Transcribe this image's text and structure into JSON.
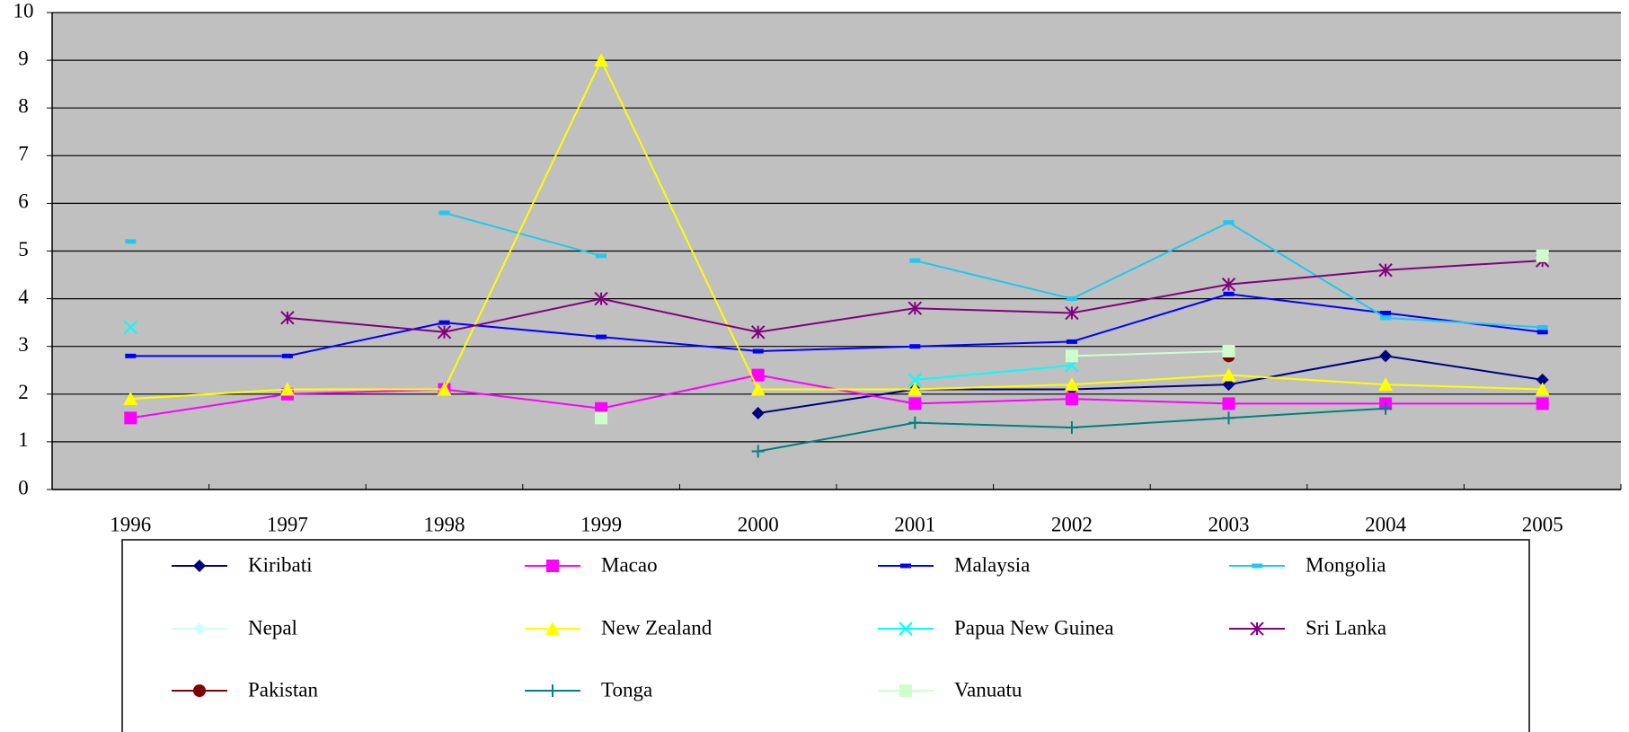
{
  "chart_data": {
    "type": "line",
    "categories": [
      "1996",
      "1997",
      "1998",
      "1999",
      "2000",
      "2001",
      "2002",
      "2003",
      "2004",
      "2005"
    ],
    "ylim": [
      0,
      10
    ],
    "yticks": [
      0,
      1,
      2,
      3,
      4,
      5,
      6,
      7,
      8,
      9,
      10
    ],
    "grid": true,
    "series": [
      {
        "name": "Kiribati",
        "color": "#000080",
        "marker": "diamond",
        "values": [
          null,
          null,
          null,
          null,
          1.6,
          2.1,
          2.1,
          2.2,
          2.8,
          2.3
        ]
      },
      {
        "name": "Macao",
        "color": "#FF00FF",
        "marker": "square",
        "values": [
          1.5,
          2.0,
          2.1,
          1.7,
          2.4,
          1.8,
          1.9,
          1.8,
          1.8,
          1.8
        ]
      },
      {
        "name": "Malaysia",
        "color": "#0000FF",
        "marker": "dash",
        "values": [
          2.8,
          2.8,
          3.5,
          3.2,
          2.9,
          3.0,
          3.1,
          4.1,
          3.7,
          3.3
        ]
      },
      {
        "name": "Mongolia",
        "color": "#1EC8F0",
        "marker": "dash",
        "values": [
          5.2,
          null,
          5.8,
          4.9,
          null,
          4.8,
          4.0,
          5.6,
          3.6,
          3.4
        ]
      },
      {
        "name": "Nepal",
        "color": "#CCFFFF",
        "marker": "diamond",
        "values": [
          null,
          null,
          null,
          null,
          null,
          null,
          null,
          null,
          null,
          null
        ]
      },
      {
        "name": "New Zealand",
        "color": "#FFFF00",
        "marker": "triangle",
        "values": [
          1.9,
          2.1,
          2.1,
          9.0,
          2.1,
          2.1,
          2.2,
          2.4,
          2.2,
          2.1
        ]
      },
      {
        "name": "Papua New Guinea",
        "color": "#00FFFF",
        "marker": "x",
        "values": [
          3.4,
          null,
          null,
          null,
          null,
          2.3,
          2.6,
          null,
          null,
          null
        ]
      },
      {
        "name": "Sri Lanka",
        "color": "#800080",
        "marker": "star",
        "values": [
          null,
          3.6,
          3.3,
          4.0,
          3.3,
          3.8,
          3.7,
          4.3,
          4.6,
          4.8
        ]
      },
      {
        "name": "Pakistan",
        "color": "#800000",
        "marker": "circle",
        "values": [
          null,
          null,
          null,
          null,
          null,
          null,
          null,
          2.8,
          null,
          null
        ]
      },
      {
        "name": "Tonga",
        "color": "#008080",
        "marker": "plus",
        "values": [
          null,
          null,
          null,
          null,
          0.8,
          1.4,
          1.3,
          1.5,
          1.7,
          null
        ]
      },
      {
        "name": "Vanuatu",
        "color": "#CCFFCC",
        "marker": "square",
        "values": [
          null,
          null,
          null,
          1.5,
          null,
          null,
          2.8,
          2.9,
          null,
          4.9
        ]
      }
    ]
  }
}
